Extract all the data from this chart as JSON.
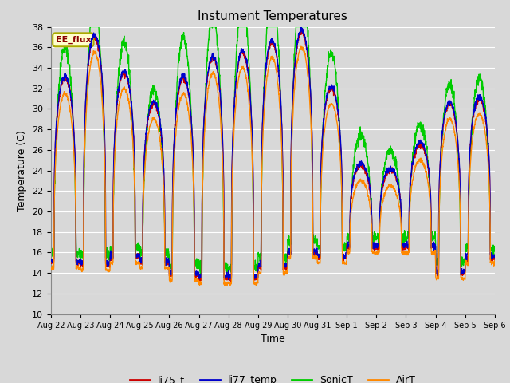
{
  "title": "Instument Temperatures",
  "xlabel": "Time",
  "ylabel": "Temperature (C)",
  "ylim": [
    10,
    38
  ],
  "yticks": [
    10,
    12,
    14,
    16,
    18,
    20,
    22,
    24,
    26,
    28,
    30,
    32,
    34,
    36,
    38
  ],
  "xtick_labels": [
    "Aug 22",
    "Aug 23",
    "Aug 24",
    "Aug 25",
    "Aug 26",
    "Aug 27",
    "Aug 28",
    "Aug 29",
    "Aug 30",
    "Aug 31",
    "Sep 1",
    "Sep 2",
    "Sep 3",
    "Sep 4",
    "Sep 5",
    "Sep 6"
  ],
  "lines": {
    "li75_t": {
      "color": "#cc0000",
      "lw": 1.0
    },
    "li77_temp": {
      "color": "#0000cc",
      "lw": 1.0
    },
    "SonicT": {
      "color": "#00cc00",
      "lw": 1.0
    },
    "AirT": {
      "color": "#ff8800",
      "lw": 1.0
    }
  },
  "annotation_text": "EE_flux",
  "background_color": "#d8d8d8",
  "plot_bg_color": "#d8d8d8",
  "grid_color": "#ffffff",
  "n_days": 15,
  "points_per_day": 144
}
